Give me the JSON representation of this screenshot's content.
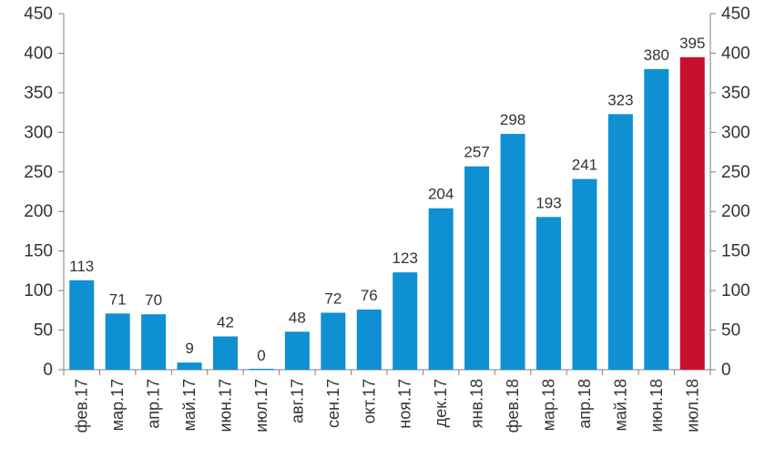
{
  "chart_data": {
    "type": "bar",
    "categories": [
      "фев.17",
      "мар.17",
      "апр.17",
      "май.17",
      "июн.17",
      "июл.17",
      "авг.17",
      "сен.17",
      "окт.17",
      "ноя.17",
      "дек.17",
      "янв.18",
      "фев.18",
      "мар.18",
      "апр.18",
      "май.18",
      "июн.18",
      "июл.18"
    ],
    "values": [
      113,
      71,
      70,
      9,
      42,
      0,
      48,
      72,
      76,
      123,
      204,
      257,
      298,
      193,
      241,
      323,
      380,
      395
    ],
    "ylim": [
      0,
      450
    ],
    "yticks": [
      "0",
      "50",
      "100",
      "150",
      "200",
      "250",
      "300",
      "350",
      "400",
      "450"
    ],
    "secondary_yticks": [
      "0",
      "50",
      "100",
      "150",
      "200",
      "250",
      "300",
      "350",
      "400",
      "450"
    ],
    "title": "",
    "xlabel": "",
    "ylabel": "",
    "grid": false,
    "legend": "none",
    "colors": {
      "bar": "#0e90d2",
      "highlight": "#c8102e",
      "axis": "#7f7f7f",
      "text": "#333333"
    },
    "highlight_index": 17
  }
}
